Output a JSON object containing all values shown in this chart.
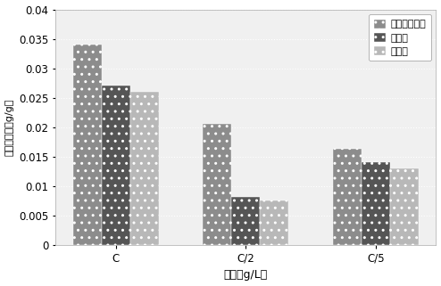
{
  "categories": [
    "C",
    "C/2",
    "C/5"
  ],
  "series": [
    {
      "label": "对羟基苯甲醛",
      "values": [
        0.034,
        0.0205,
        0.0163
      ],
      "color": "#8c8c8c",
      "hatch": ".."
    },
    {
      "label": "香草醛",
      "values": [
        0.027,
        0.0082,
        0.014
      ],
      "color": "#555555",
      "hatch": ".."
    },
    {
      "label": "丁香醛",
      "values": [
        0.026,
        0.0076,
        0.013
      ],
      "color": "#b8b8b8",
      "hatch": ".."
    }
  ],
  "ylabel": "最大吸附量（g/g）",
  "xlabel": "浓度（g/L）",
  "ylim": [
    0,
    0.04
  ],
  "yticks": [
    0,
    0.005,
    0.01,
    0.015,
    0.02,
    0.025,
    0.03,
    0.035,
    0.04
  ],
  "ytick_labels": [
    "0",
    "0.005",
    "0.01",
    "0.015",
    "0.02",
    "0.025",
    "0.03",
    "0.035",
    "0.04"
  ],
  "background_color": "#ffffff",
  "plot_bg_color": "#f0f0f0",
  "bar_width": 0.22,
  "legend_loc": "upper right"
}
